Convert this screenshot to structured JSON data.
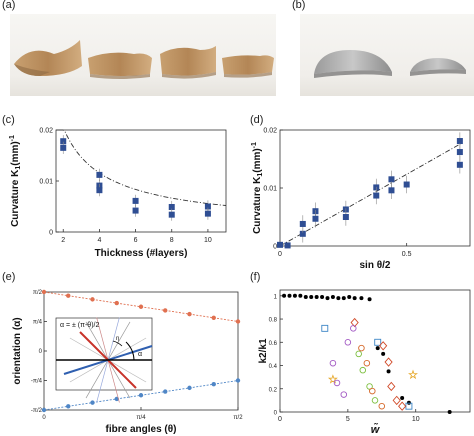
{
  "panels": {
    "a": "(a)",
    "b": "(b)",
    "c": "(c)",
    "d": "(d)",
    "e": "(e)",
    "f": "(f)"
  },
  "chart_data": [
    {
      "panel": "c",
      "type": "scatter",
      "xlabel": "Thickness (#layers)",
      "ylabel": "Curvature K",
      "ylabel_sub": "1",
      "ylabel_unit": "(mm)",
      "ylabel_sup": "-1",
      "xlim": [
        1.6,
        11
      ],
      "ylim": [
        0,
        0.02
      ],
      "xticks": [
        "2",
        "4",
        "6",
        "8",
        "10"
      ],
      "xtick_values": [
        2,
        4,
        6,
        8,
        10
      ],
      "yticks": [
        "0",
        "0.01",
        "0.02"
      ],
      "ytick_values": [
        0,
        0.01,
        0.02
      ],
      "points": [
        {
          "x": 2,
          "y": 0.0178,
          "err": 0.0012
        },
        {
          "x": 2,
          "y": 0.0165,
          "err": 0.0012
        },
        {
          "x": 4,
          "y": 0.0112,
          "err": 0.0012
        },
        {
          "x": 4,
          "y": 0.0091,
          "err": 0.0012
        },
        {
          "x": 4,
          "y": 0.0082,
          "err": 0.0012
        },
        {
          "x": 6,
          "y": 0.0061,
          "err": 0.0012
        },
        {
          "x": 6,
          "y": 0.0042,
          "err": 0.0012
        },
        {
          "x": 8,
          "y": 0.0049,
          "err": 0.0012
        },
        {
          "x": 8,
          "y": 0.0034,
          "err": 0.0012
        },
        {
          "x": 10,
          "y": 0.005,
          "err": 0.0012
        },
        {
          "x": 10,
          "y": 0.0036,
          "err": 0.0012
        }
      ],
      "fit": "dash-dot power-law curve",
      "marker_color": "#2f4e93"
    },
    {
      "panel": "d",
      "type": "scatter",
      "xlabel": "sin θ/2",
      "ylabel": "Curvature K",
      "ylabel_sub": "1",
      "ylabel_unit": "(mm)",
      "ylabel_sup": "-1",
      "xlim": [
        0,
        0.75
      ],
      "ylim": [
        0,
        0.02
      ],
      "xticks": [
        "0",
        "0.5"
      ],
      "xtick_values": [
        0,
        0.5
      ],
      "yticks": [
        "0",
        "0.01",
        "0.02"
      ],
      "ytick_values": [
        0,
        0.01,
        0.02
      ],
      "points": [
        {
          "x": 0.0,
          "y": 0.0002,
          "err": 0.0005
        },
        {
          "x": 0.03,
          "y": 0.0001,
          "err": 0.0005
        },
        {
          "x": 0.09,
          "y": 0.0021,
          "err": 0.0015
        },
        {
          "x": 0.09,
          "y": 0.0038,
          "err": 0.0015
        },
        {
          "x": 0.14,
          "y": 0.006,
          "err": 0.0015
        },
        {
          "x": 0.14,
          "y": 0.0047,
          "err": 0.0015
        },
        {
          "x": 0.26,
          "y": 0.0063,
          "err": 0.0015
        },
        {
          "x": 0.26,
          "y": 0.005,
          "err": 0.0015
        },
        {
          "x": 0.38,
          "y": 0.0101,
          "err": 0.0015
        },
        {
          "x": 0.38,
          "y": 0.0087,
          "err": 0.0015
        },
        {
          "x": 0.44,
          "y": 0.0115,
          "err": 0.0015
        },
        {
          "x": 0.44,
          "y": 0.0096,
          "err": 0.0015
        },
        {
          "x": 0.5,
          "y": 0.0106,
          "err": 0.0015
        },
        {
          "x": 0.71,
          "y": 0.0181,
          "err": 0.0015
        },
        {
          "x": 0.71,
          "y": 0.0162,
          "err": 0.0015
        },
        {
          "x": 0.71,
          "y": 0.014,
          "err": 0.0015
        }
      ],
      "fit": "dash-dot linear",
      "marker_color": "#2f4e93"
    },
    {
      "panel": "e",
      "type": "line",
      "xlabel": "fibre angles (θ)",
      "ylabel": "orientation (α)",
      "xticks": [
        "0",
        "π/4",
        "π/2"
      ],
      "yticks": [
        "-π/2",
        "-π/4",
        "0",
        "π/4",
        "π/2"
      ],
      "xlim": [
        0,
        1.5708
      ],
      "ylim": [
        -1.5708,
        1.5708
      ],
      "series": [
        {
          "color": "#e07050",
          "x": [
            0,
            0.1963,
            0.3927,
            0.589,
            0.7854,
            0.9817,
            1.1781,
            1.3744,
            1.5708
          ],
          "y": [
            1.5708,
            1.4726,
            1.3744,
            1.2763,
            1.1781,
            1.0799,
            0.9817,
            0.8836,
            0.7854
          ]
        },
        {
          "color": "#4f86c6",
          "x": [
            0,
            0.1963,
            0.3927,
            0.589,
            0.7854,
            0.9817,
            1.1781,
            1.3744,
            1.5708
          ],
          "y": [
            -1.5708,
            -1.4726,
            -1.3744,
            -1.2763,
            -1.1781,
            -1.0799,
            -0.9817,
            -0.8836,
            -0.7854
          ]
        }
      ],
      "inset": {
        "equation": "α = ± (π-θ)/2",
        "labels": [
          "η",
          "α"
        ]
      }
    },
    {
      "panel": "f",
      "type": "scatter",
      "xlabel": "w̃",
      "ylabel": "k2/k1",
      "xlim": [
        0,
        14
      ],
      "ylim": [
        0,
        1.05
      ],
      "xticks": [
        "0",
        "5",
        "10"
      ],
      "xtick_values": [
        0,
        5,
        10
      ],
      "yticks": [
        "0",
        "0.2",
        "0.4",
        "0.6",
        "0.8",
        "1"
      ],
      "ytick_values": [
        0,
        0.2,
        0.4,
        0.6,
        0.8,
        1
      ],
      "series": [
        {
          "marker": "dot",
          "color": "#000000",
          "x": [
            0.3,
            0.7,
            1.1,
            1.5,
            1.9,
            2.3,
            2.7,
            3.1,
            3.5,
            3.9,
            4.3,
            4.7,
            5.1,
            5.5,
            6.0,
            6.6,
            7.2,
            7.6,
            8.0,
            9.0,
            9.5,
            12.5
          ],
          "y": [
            1.0,
            1.0,
            1.0,
            1.0,
            0.99,
            0.99,
            0.99,
            0.99,
            0.98,
            0.99,
            0.98,
            0.98,
            0.99,
            0.98,
            0.98,
            0.97,
            0.55,
            0.5,
            0.35,
            0.12,
            0.08,
            0.0
          ]
        },
        {
          "marker": "square",
          "color": "#3d86c6",
          "x": [
            3.3,
            7.2,
            9.5
          ],
          "y": [
            0.72,
            0.6,
            0.05
          ]
        },
        {
          "marker": "diamond",
          "color": "#d14b2a",
          "x": [
            5.5,
            7.6,
            8.0,
            8.2,
            8.6,
            9.0
          ],
          "y": [
            0.77,
            0.57,
            0.43,
            0.22,
            0.1,
            0.05
          ]
        },
        {
          "marker": "star",
          "color": "#e6a728",
          "x": [
            3.9,
            9.8
          ],
          "y": [
            0.28,
            0.32
          ]
        },
        {
          "marker": "circle",
          "color": "#a35bc4",
          "x": [
            5.4,
            5.0,
            3.9,
            4.2,
            4.7
          ],
          "y": [
            0.72,
            0.6,
            0.42,
            0.25,
            0.15
          ]
        },
        {
          "marker": "circle",
          "color": "#7cbf3e",
          "x": [
            5.8,
            6.1,
            6.6,
            7.0
          ],
          "y": [
            0.5,
            0.36,
            0.22,
            0.1
          ]
        },
        {
          "marker": "circle",
          "color": "#d66a2c",
          "x": [
            6.0,
            6.4,
            6.8,
            7.5
          ],
          "y": [
            0.55,
            0.42,
            0.18,
            0.05
          ]
        }
      ]
    }
  ]
}
